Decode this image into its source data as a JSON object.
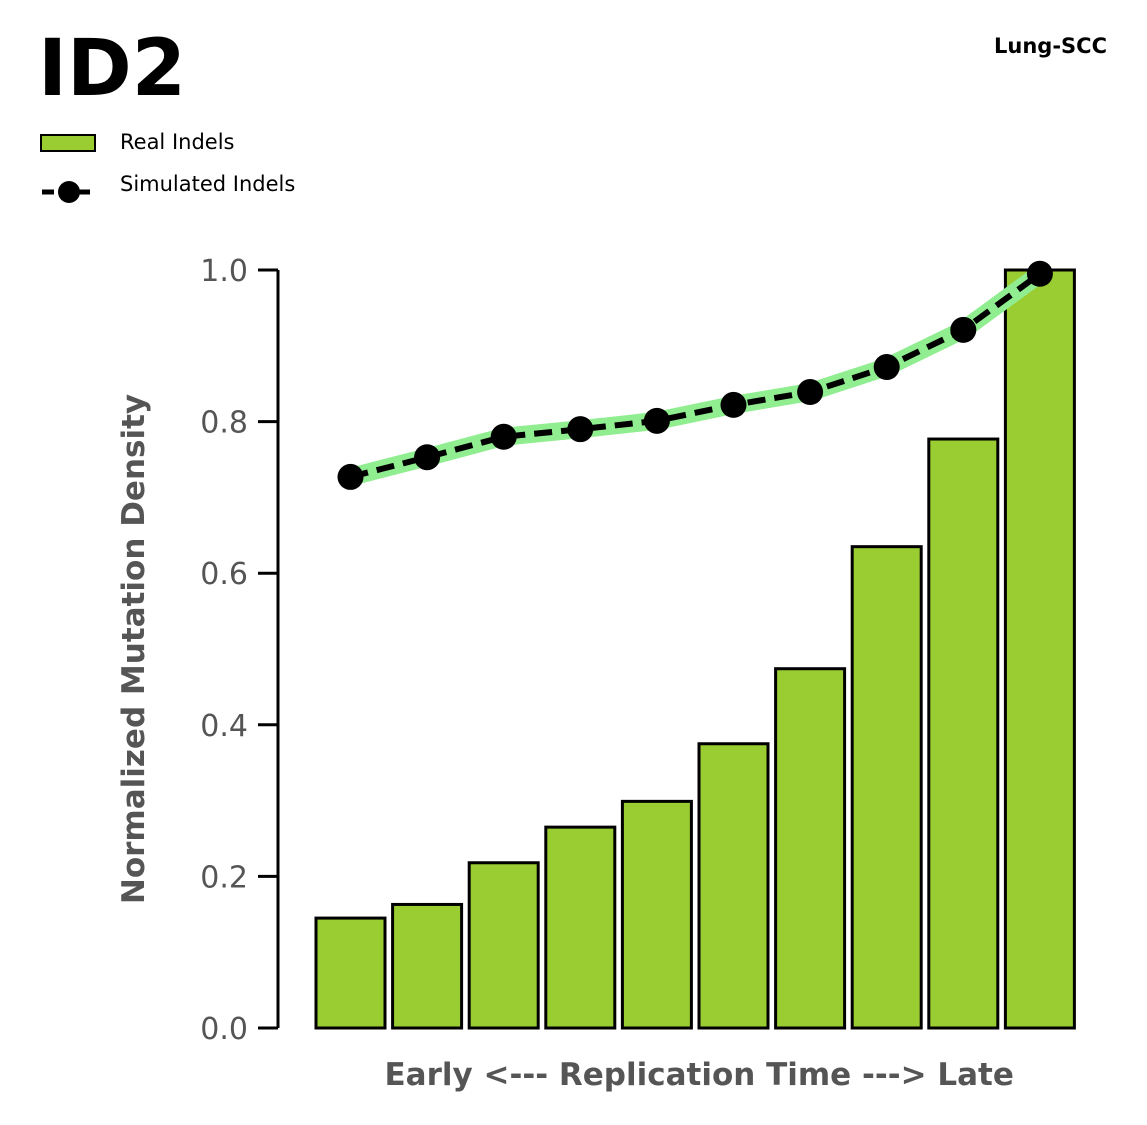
{
  "header": {
    "title": "ID2",
    "cancer_type": "Lung-SCC"
  },
  "legend": {
    "items": [
      {
        "label": "Real Indels",
        "kind": "bar"
      },
      {
        "label": "Simulated Indels",
        "kind": "line"
      }
    ]
  },
  "colors": {
    "bar_fill": "#9ACD32",
    "bar_edge": "#000000",
    "sim_line": "#000000",
    "sim_band": "#90EE90",
    "axis": "#000000",
    "tick_text": "#555555"
  },
  "chart_data": {
    "type": "bar",
    "title": "ID2",
    "xlabel": "Early <--- Replication Time ---> Late",
    "ylabel": "Normalized Mutation Density",
    "ylim": [
      0,
      1.0
    ],
    "yticks": [
      "0.0",
      "0.2",
      "0.4",
      "0.6",
      "0.8",
      "1.0"
    ],
    "legend_position": "top-left",
    "grid": false,
    "series": [
      {
        "name": "Real Indels",
        "type": "bar",
        "values": [
          0.145,
          0.163,
          0.218,
          0.265,
          0.299,
          0.375,
          0.474,
          0.635,
          0.777,
          1.0
        ]
      },
      {
        "name": "Simulated Indels",
        "type": "line",
        "values": [
          0.727,
          0.753,
          0.78,
          0.79,
          0.801,
          0.822,
          0.839,
          0.872,
          0.921,
          0.995
        ]
      }
    ]
  }
}
